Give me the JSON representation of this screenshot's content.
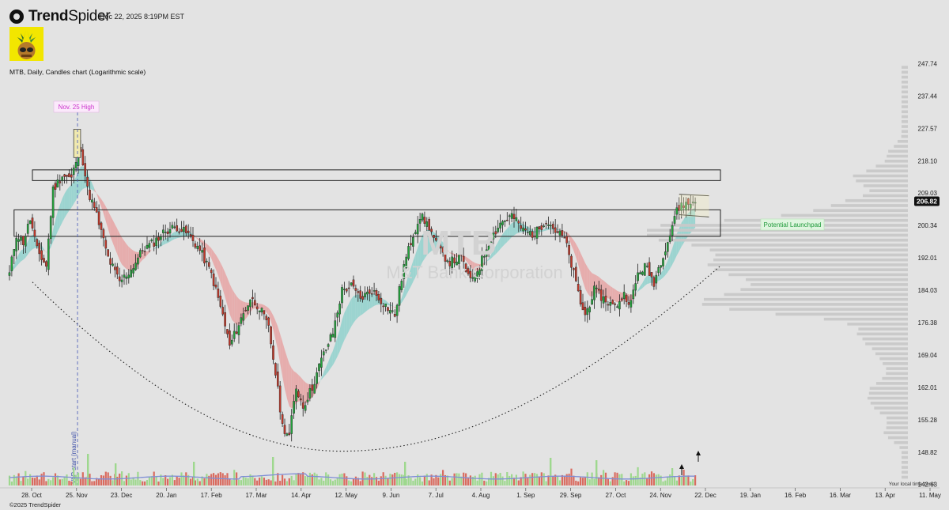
{
  "header": {
    "brand_bold": "Trend",
    "brand_light": "Spider",
    "timestamp": "Dec 22, 2025 8:19PM EST",
    "subtitle": "MTB, Daily, Candles chart (Logarithmic scale)",
    "footer": "©2025 TrendSpider",
    "avatar_icon": "pineapple-avatar-icon"
  },
  "chart_data": {
    "type": "candlestick",
    "ticker": "MTB",
    "watermark": "MTB",
    "watermark_sub": "M&T Bank Corporation",
    "scale": "log",
    "ylim": [
      142,
      252
    ],
    "y_ticks": [
      "247.74",
      "237.44",
      "227.57",
      "218.10",
      "209.03",
      "200.34",
      "192.01",
      "184.03",
      "176.38",
      "169.04",
      "162.01",
      "155.28",
      "148.82",
      "142.63"
    ],
    "x_ticks": [
      "28. Oct",
      "25. Nov",
      "23. Dec",
      "20. Jan",
      "17. Feb",
      "17. Mar",
      "14. Apr",
      "12. May",
      "9. Jun",
      "7. Jul",
      "4. Aug",
      "1. Sep",
      "29. Sep",
      "27. Oct",
      "24. Nov",
      "22. Dec",
      "19. Jan",
      "16. Feb",
      "16. Mar",
      "13. Apr",
      "11. May"
    ],
    "last_price": "206.82",
    "axis_note": "Your local time zone",
    "vbp_label": "VbP start (manual)",
    "annotations": [
      {
        "text": "Nov. 25 High",
        "color": "#cc33cc"
      },
      {
        "text": "Potential Launchpad",
        "color": "#1f9a3a"
      }
    ],
    "zones": [
      {
        "name": "upper-resistance",
        "low": 212.5,
        "high": 215.5
      },
      {
        "name": "breakout-zone",
        "low": 197.5,
        "high": 204.5
      }
    ],
    "path_closes": [
      {
        "x": 0,
        "y": 188
      },
      {
        "x": 3,
        "y": 198
      },
      {
        "x": 6,
        "y": 196
      },
      {
        "x": 9,
        "y": 202
      },
      {
        "x": 12,
        "y": 194
      },
      {
        "x": 16,
        "y": 190
      },
      {
        "x": 19,
        "y": 210
      },
      {
        "x": 23,
        "y": 214
      },
      {
        "x": 27,
        "y": 213
      },
      {
        "x": 29,
        "y": 218
      },
      {
        "x": 31,
        "y": 222
      },
      {
        "x": 34,
        "y": 210
      },
      {
        "x": 38,
        "y": 203
      },
      {
        "x": 43,
        "y": 192
      },
      {
        "x": 48,
        "y": 186
      },
      {
        "x": 53,
        "y": 189
      },
      {
        "x": 58,
        "y": 194
      },
      {
        "x": 63,
        "y": 196
      },
      {
        "x": 68,
        "y": 199
      },
      {
        "x": 73,
        "y": 200
      },
      {
        "x": 78,
        "y": 198
      },
      {
        "x": 83,
        "y": 194
      },
      {
        "x": 88,
        "y": 188
      },
      {
        "x": 93,
        "y": 178
      },
      {
        "x": 96,
        "y": 171
      },
      {
        "x": 100,
        "y": 176
      },
      {
        "x": 105,
        "y": 182
      },
      {
        "x": 109,
        "y": 180
      },
      {
        "x": 113,
        "y": 175
      },
      {
        "x": 116,
        "y": 165
      },
      {
        "x": 119,
        "y": 154
      },
      {
        "x": 122,
        "y": 152
      },
      {
        "x": 125,
        "y": 162
      },
      {
        "x": 128,
        "y": 158
      },
      {
        "x": 132,
        "y": 162
      },
      {
        "x": 136,
        "y": 168
      },
      {
        "x": 141,
        "y": 174
      },
      {
        "x": 145,
        "y": 184
      },
      {
        "x": 149,
        "y": 185
      },
      {
        "x": 153,
        "y": 182
      },
      {
        "x": 158,
        "y": 184
      },
      {
        "x": 163,
        "y": 181
      },
      {
        "x": 168,
        "y": 178
      },
      {
        "x": 172,
        "y": 190
      },
      {
        "x": 176,
        "y": 198
      },
      {
        "x": 179,
        "y": 203
      },
      {
        "x": 183,
        "y": 200
      },
      {
        "x": 187,
        "y": 194
      },
      {
        "x": 192,
        "y": 191
      },
      {
        "x": 197,
        "y": 192
      },
      {
        "x": 201,
        "y": 186
      },
      {
        "x": 205,
        "y": 190
      },
      {
        "x": 209,
        "y": 196
      },
      {
        "x": 214,
        "y": 201
      },
      {
        "x": 219,
        "y": 203
      },
      {
        "x": 224,
        "y": 199
      },
      {
        "x": 229,
        "y": 198
      },
      {
        "x": 234,
        "y": 202
      },
      {
        "x": 238,
        "y": 199
      },
      {
        "x": 242,
        "y": 197
      },
      {
        "x": 246,
        "y": 188
      },
      {
        "x": 249,
        "y": 181
      },
      {
        "x": 251,
        "y": 178
      },
      {
        "x": 255,
        "y": 184
      },
      {
        "x": 259,
        "y": 182
      },
      {
        "x": 264,
        "y": 180
      },
      {
        "x": 268,
        "y": 183
      },
      {
        "x": 271,
        "y": 181
      },
      {
        "x": 274,
        "y": 188
      },
      {
        "x": 277,
        "y": 190
      },
      {
        "x": 281,
        "y": 186
      },
      {
        "x": 285,
        "y": 193
      },
      {
        "x": 288,
        "y": 198
      },
      {
        "x": 290,
        "y": 203
      },
      {
        "x": 293,
        "y": 206
      },
      {
        "x": 296,
        "y": 206
      },
      {
        "x": 299,
        "y": 207
      }
    ],
    "ema_bands": [
      {
        "x0": 0,
        "x1": 38,
        "trend": "up"
      },
      {
        "x0": 38,
        "x1": 55,
        "trend": "down"
      },
      {
        "x0": 55,
        "x1": 78,
        "trend": "up"
      },
      {
        "x0": 78,
        "x1": 110,
        "trend": "down"
      },
      {
        "x0": 110,
        "x1": 126,
        "trend": "down"
      },
      {
        "x0": 126,
        "x1": 176,
        "trend": "up"
      },
      {
        "x0": 176,
        "x1": 184,
        "trend": "flat"
      },
      {
        "x0": 184,
        "x1": 201,
        "trend": "up"
      },
      {
        "x0": 201,
        "x1": 214,
        "trend": "up"
      },
      {
        "x0": 228,
        "x1": 262,
        "trend": "down"
      },
      {
        "x0": 262,
        "x1": 299,
        "trend": "up"
      }
    ],
    "rounded_bottom_curve": {
      "from_value": 186,
      "trough_value": 149,
      "to_value": 190
    },
    "volume_spikes": [
      110,
      145,
      40,
      150,
      95,
      85,
      100,
      120,
      90,
      75,
      65,
      140,
      60,
      75,
      85,
      95,
      80,
      105,
      80,
      70,
      90,
      70,
      85,
      100,
      110,
      65,
      70,
      130,
      85,
      80,
      100,
      150,
      90,
      80,
      110,
      95,
      120,
      130,
      115,
      140
    ],
    "colors": {
      "up": "#23a33c",
      "down": "#c0392b",
      "band_up": "#8fd1cc",
      "band_down": "#e6a3a3",
      "volume_up": "#9ed88e",
      "volume_down": "#d96b5f",
      "volume_ma": "#7f8fd6",
      "vbp": "#c8c8c8"
    }
  }
}
